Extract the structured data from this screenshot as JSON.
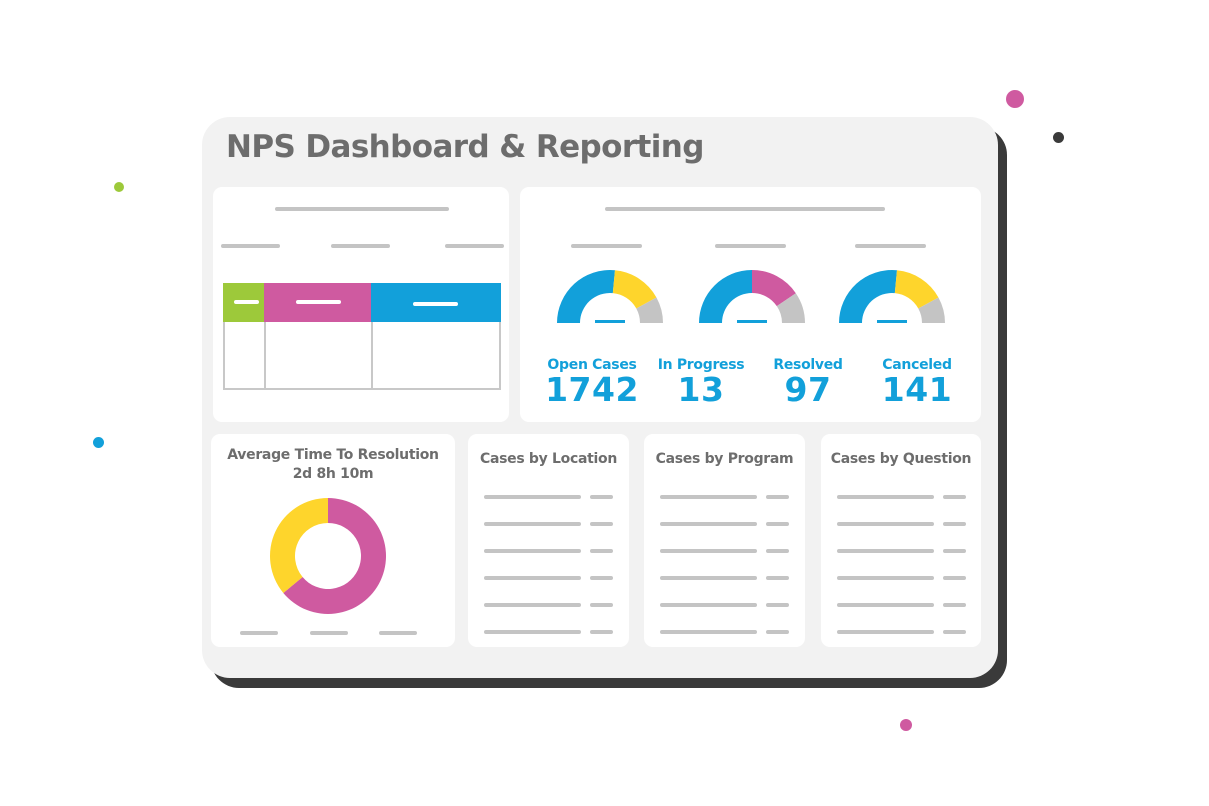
{
  "colors": {
    "blue": "#12a0da",
    "pink": "#cf5aa0",
    "yellow": "#fed52c",
    "green": "#9dc93a",
    "gray": "#c4c4c4",
    "dark": "#3a3a3a",
    "title_gray": "#6d6d6d"
  },
  "header": {
    "title": "NPS Dashboard & Reporting"
  },
  "table_card": {
    "columns": [
      {
        "color": "#9dc93a",
        "label": ""
      },
      {
        "color": "#cf5aa0",
        "label": ""
      },
      {
        "color": "#12a0da",
        "label": ""
      }
    ]
  },
  "gauges": [
    {
      "segments": [
        {
          "color": "#12a0da",
          "pct": 53
        },
        {
          "color": "#fed52c",
          "pct": 31
        },
        {
          "color": "#c4c4c4",
          "pct": 16
        }
      ]
    },
    {
      "segments": [
        {
          "color": "#12a0da",
          "pct": 50
        },
        {
          "color": "#cf5aa0",
          "pct": 31
        },
        {
          "color": "#c4c4c4",
          "pct": 19
        }
      ]
    },
    {
      "segments": [
        {
          "color": "#12a0da",
          "pct": 53
        },
        {
          "color": "#fed52c",
          "pct": 31
        },
        {
          "color": "#c4c4c4",
          "pct": 16
        }
      ]
    }
  ],
  "stats": [
    {
      "label": "Open Cases",
      "value": "1742"
    },
    {
      "label": "In Progress",
      "value": "13"
    },
    {
      "label": "Resolved",
      "value": "97"
    },
    {
      "label": "Canceled",
      "value": "141"
    }
  ],
  "resolution_card": {
    "title": "Average Time To Resolution",
    "value": "2d 8h 10m",
    "donut": [
      {
        "color": "#cf5aa0",
        "pct": 64
      },
      {
        "color": "#fed52c",
        "pct": 36
      }
    ]
  },
  "list_cards": [
    {
      "title": "Cases by Location",
      "rows": 6
    },
    {
      "title": "Cases by Program",
      "rows": 6
    },
    {
      "title": "Cases by Question",
      "rows": 6
    }
  ]
}
